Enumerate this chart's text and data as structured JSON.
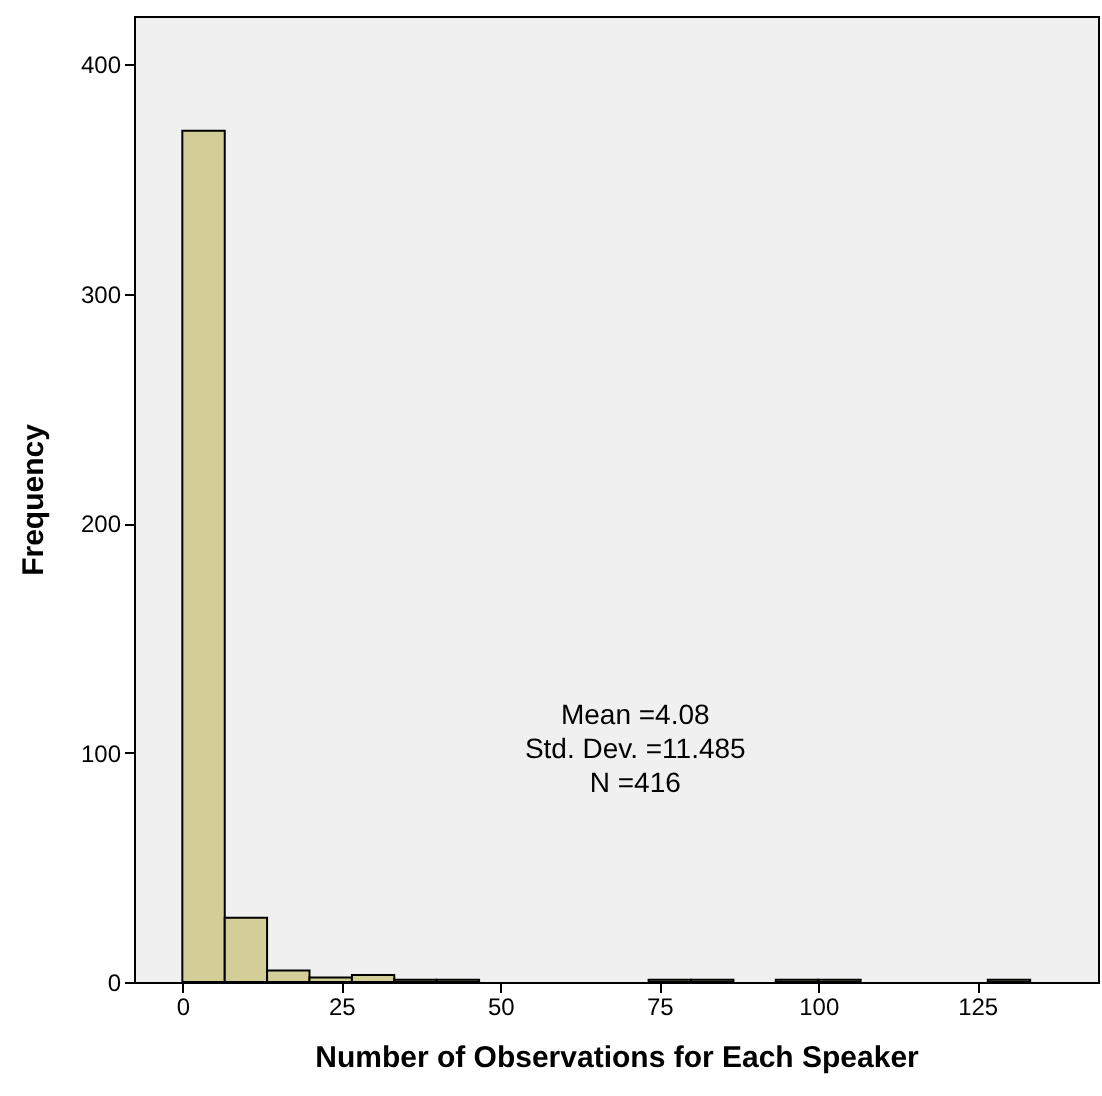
{
  "chart_data": {
    "type": "histogram",
    "xlabel": "Number of Observations for Each Speaker",
    "ylabel": "Frequency",
    "bins": [
      0,
      6.67,
      13.33,
      20,
      26.67,
      33.33,
      40,
      46.67,
      53.33,
      60,
      66.67,
      73.33,
      80,
      86.67,
      93.33,
      100,
      106.67,
      113.33,
      120,
      126.67,
      133.33
    ],
    "values": [
      371,
      28,
      5,
      2,
      3,
      1,
      1,
      0,
      0,
      0,
      0,
      1,
      1,
      0,
      1,
      1,
      0,
      0,
      0,
      1
    ],
    "color": "#d3ce97",
    "xlim": [
      -7.6,
      144
    ],
    "xticks": [
      0,
      25,
      50,
      75,
      100,
      125
    ],
    "ylim": [
      0,
      421
    ],
    "yticks": [
      0,
      100,
      200,
      300,
      400
    ],
    "annotations": [
      "Mean =4.08",
      "Std. Dev. =11.485",
      "N =416"
    ],
    "grid": false
  }
}
